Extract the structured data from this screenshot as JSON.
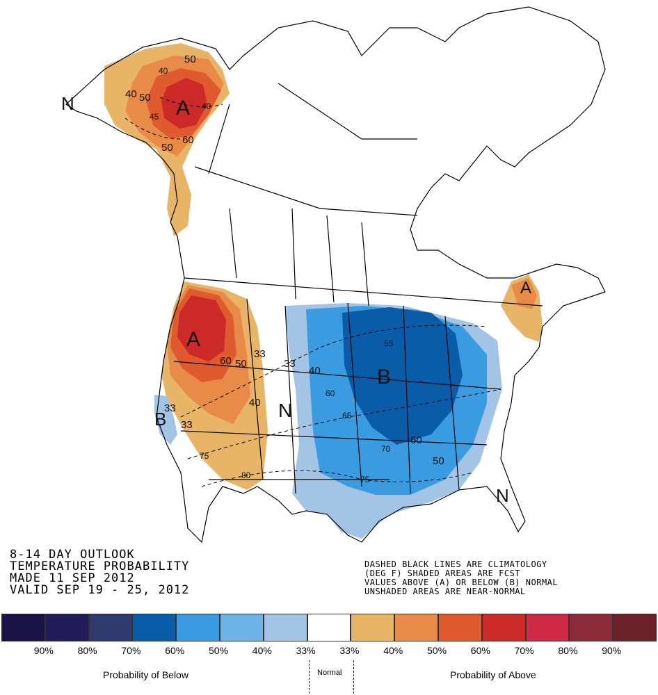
{
  "outlook": {
    "title_lines": [
      "8-14 DAY OUTLOOK",
      "TEMPERATURE PROBABILITY",
      "MADE  11 SEP 2012",
      "VALID  SEP 19 - 25, 2012"
    ],
    "notes_lines": [
      "DASHED BLACK LINES ARE CLIMATOLOGY",
      "(DEG F) SHADED AREAS ARE FCST",
      "VALUES ABOVE (A) OR BELOW (B) NORMAL",
      "UNSHADED AREAS ARE NEAR-NORMAL"
    ]
  },
  "map_labels": {
    "above": "A",
    "below": "B",
    "normal": "N"
  },
  "contour_labels": [
    "50",
    "40",
    "40",
    "50",
    "45",
    "40",
    "50",
    "60",
    "60",
    "50",
    "33",
    "33",
    "40",
    "33",
    "33",
    "75",
    "80",
    "40",
    "60",
    "65",
    "55",
    "70",
    "75",
    "60",
    "50"
  ],
  "legend": {
    "colors": [
      "#1a1446",
      "#221d5a",
      "#2e3a6e",
      "#0a5ba8",
      "#3a9be0",
      "#6eb3e8",
      "#a3c4e4",
      "#ffffff",
      "#e8b468",
      "#e88a48",
      "#e05a30",
      "#cc2a28",
      "#d02a48",
      "#8c2a3a",
      "#6a2228"
    ],
    "labels": [
      "90%",
      "80%",
      "70%",
      "60%",
      "50%",
      "40%",
      "33%",
      "33%",
      "40%",
      "50%",
      "60%",
      "70%",
      "80%",
      "90%"
    ],
    "below_caption": "Probability of Below",
    "normal_caption": "Normal",
    "above_caption": "Probability of Above"
  }
}
